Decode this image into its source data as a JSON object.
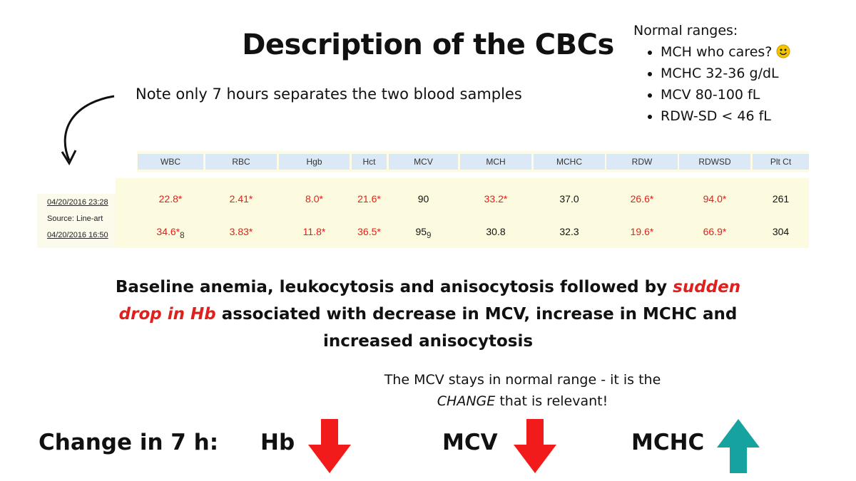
{
  "title": "Description of the CBCs",
  "note": "Note only 7 hours separates the two blood samples",
  "normal_ranges": {
    "heading": "Normal ranges:",
    "items": [
      "MCH who cares?",
      "MCHC 32-36 g/dL",
      "MCV 80-100 fL",
      "RDW-SD < 46 fL"
    ]
  },
  "table": {
    "headers": [
      "WBC",
      "RBC",
      "Hgb",
      "Hct",
      "MCV",
      "MCH",
      "MCHC",
      "RDW",
      "RDWSD",
      "Plt Ct"
    ],
    "rows": [
      {
        "label": "04/20/2016 23:28",
        "source": "Source: Line-art",
        "cells": [
          "22.8*",
          "2.41*",
          "8.0*",
          "21.6*",
          "90",
          "33.2*",
          "37.0",
          "26.6*",
          "94.0*",
          "261"
        ]
      },
      {
        "label": "04/20/2016 16:50",
        "cells": [
          {
            "text": "34.6*",
            "sub": "8"
          },
          "3.83*",
          "11.8*",
          "36.5*",
          {
            "text": "95",
            "sub": "9"
          },
          "30.8",
          "32.3",
          "19.6*",
          "66.9*",
          "304"
        ]
      }
    ]
  },
  "summary": {
    "before": "Baseline anemia, leukocytosis and anisocytosis followed by",
    "highlight": "sudden drop in Hb",
    "after": "associated with decrease in MCV, increase in MCHC and increased anisocytosis"
  },
  "callout": {
    "before": "The MCV stays in normal range - it is the",
    "emphasis": "CHANGE",
    "after": "that is relevant!"
  },
  "change": {
    "label": "Change in 7 h:",
    "items": [
      {
        "name": "Hb",
        "direction": "down",
        "color": "#f21b1b"
      },
      {
        "name": "MCV",
        "direction": "down",
        "color": "#f21b1b"
      },
      {
        "name": "MCHC",
        "direction": "up",
        "color": "#16a3a0"
      }
    ]
  }
}
